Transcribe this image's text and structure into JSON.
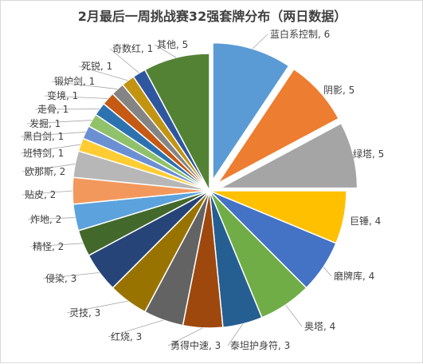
{
  "chart_data": {
    "type": "pie",
    "title": "2月最后一周挑战赛32强套牌分布（两日数据）",
    "categories": [
      "蓝白系控制",
      "阴影",
      "绿塔",
      "巨锤",
      "磨牌库",
      "奥塔",
      "泰坦护身符",
      "勇得中速",
      "红烧",
      "灵技",
      "侵染",
      "精怪",
      "炸地",
      "贴皮",
      "欧那斯",
      "班特剑",
      "黑白剑",
      "发掘",
      "走骨",
      "变境",
      "锻炉剑",
      "死锐",
      "奇数红",
      "其他"
    ],
    "values": [
      6,
      5,
      5,
      4,
      4,
      4,
      3,
      3,
      3,
      3,
      3,
      2,
      2,
      2,
      2,
      1,
      1,
      1,
      1,
      1,
      1,
      1,
      1,
      5
    ],
    "labels": [
      "蓝白系控制, 6",
      "阴影, 5",
      "绿塔, 5",
      "巨锤, 4",
      "磨牌库, 4",
      "奥塔, 4",
      "泰坦护身符, 3",
      "勇得中速, 3",
      "红烧, 3",
      "灵技, 3",
      "侵染, 3",
      "精怪, 2",
      "炸地, 2",
      "贴皮, 2",
      "欧那斯, 2",
      "班特剑, 1",
      "黑白剑, 1",
      "发掘, 1",
      "走骨, 1",
      "变境, 1",
      "锻炉剑, 1",
      "死锐, 1",
      "奇数红, 1",
      "其他, 5"
    ],
    "colors": [
      "#5b9bd5",
      "#ed7d31",
      "#a5a5a5",
      "#ffc000",
      "#4472c4",
      "#70ad47",
      "#255e91",
      "#9e480e",
      "#636363",
      "#997300",
      "#264478",
      "#43682b",
      "#5ca2dd",
      "#f2985d",
      "#b7b7b7",
      "#ffcd33",
      "#6a8fd3",
      "#8fc26b",
      "#2d72b0",
      "#c45a14",
      "#848484",
      "#c29412",
      "#2f57a0",
      "#548235"
    ],
    "exploded": [
      "蓝白系控制",
      "阴影",
      "绿塔"
    ],
    "legend": "none"
  }
}
